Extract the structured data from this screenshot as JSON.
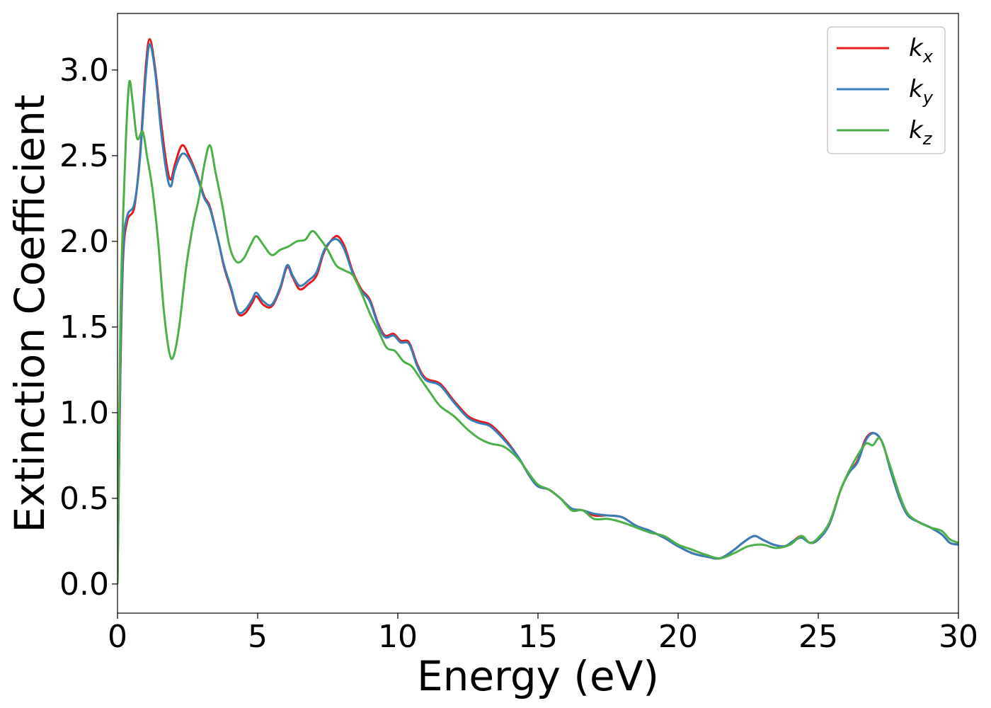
{
  "chart_data": {
    "type": "line",
    "xlabel": "Energy (eV)",
    "ylabel": "Extinction Coefficient",
    "xlim": [
      0,
      30
    ],
    "ylim": [
      -0.17,
      3.33
    ],
    "x_ticks": [
      0,
      5,
      10,
      15,
      20,
      25,
      30
    ],
    "y_ticks": [
      0.0,
      0.5,
      1.0,
      1.5,
      2.0,
      2.5,
      3.0
    ],
    "grid": false,
    "legend_position": "top-right",
    "series": [
      {
        "name": "k_x",
        "label_main": "k",
        "label_sub": "x",
        "color": "#e41a1c",
        "points": [
          [
            0,
            0
          ],
          [
            0.1,
            1.2
          ],
          [
            0.2,
            1.9
          ],
          [
            0.35,
            2.12
          ],
          [
            0.6,
            2.2
          ],
          [
            0.8,
            2.5
          ],
          [
            1.0,
            3.0
          ],
          [
            1.15,
            3.18
          ],
          [
            1.35,
            3.0
          ],
          [
            1.55,
            2.7
          ],
          [
            1.75,
            2.45
          ],
          [
            1.9,
            2.36
          ],
          [
            2.05,
            2.45
          ],
          [
            2.3,
            2.56
          ],
          [
            2.55,
            2.5
          ],
          [
            2.85,
            2.38
          ],
          [
            3.1,
            2.26
          ],
          [
            3.3,
            2.2
          ],
          [
            3.6,
            2.0
          ],
          [
            3.8,
            1.85
          ],
          [
            4.05,
            1.72
          ],
          [
            4.3,
            1.58
          ],
          [
            4.55,
            1.58
          ],
          [
            4.8,
            1.64
          ],
          [
            4.95,
            1.68
          ],
          [
            5.2,
            1.63
          ],
          [
            5.5,
            1.62
          ],
          [
            5.8,
            1.72
          ],
          [
            6.05,
            1.85
          ],
          [
            6.25,
            1.79
          ],
          [
            6.5,
            1.72
          ],
          [
            6.8,
            1.75
          ],
          [
            7.1,
            1.8
          ],
          [
            7.35,
            1.93
          ],
          [
            7.6,
            2.0
          ],
          [
            7.85,
            2.03
          ],
          [
            8.1,
            1.97
          ],
          [
            8.4,
            1.82
          ],
          [
            8.7,
            1.72
          ],
          [
            9.0,
            1.66
          ],
          [
            9.3,
            1.52
          ],
          [
            9.55,
            1.45
          ],
          [
            9.85,
            1.46
          ],
          [
            10.1,
            1.42
          ],
          [
            10.4,
            1.41
          ],
          [
            10.7,
            1.28
          ],
          [
            11.0,
            1.2
          ],
          [
            11.5,
            1.17
          ],
          [
            12.0,
            1.07
          ],
          [
            12.5,
            0.98
          ],
          [
            12.9,
            0.95
          ],
          [
            13.3,
            0.93
          ],
          [
            13.8,
            0.85
          ],
          [
            14.3,
            0.74
          ],
          [
            14.7,
            0.63
          ],
          [
            15.0,
            0.57
          ],
          [
            15.4,
            0.55
          ],
          [
            15.8,
            0.5
          ],
          [
            16.2,
            0.44
          ],
          [
            16.6,
            0.43
          ],
          [
            17.0,
            0.4
          ],
          [
            17.5,
            0.4
          ],
          [
            18.0,
            0.39
          ],
          [
            18.5,
            0.34
          ],
          [
            19.0,
            0.31
          ],
          [
            19.5,
            0.27
          ],
          [
            20.0,
            0.22
          ],
          [
            20.5,
            0.18
          ],
          [
            21.0,
            0.16
          ],
          [
            21.5,
            0.15
          ],
          [
            22.0,
            0.2
          ],
          [
            22.3,
            0.24
          ],
          [
            22.7,
            0.28
          ],
          [
            23.0,
            0.26
          ],
          [
            23.4,
            0.23
          ],
          [
            23.8,
            0.22
          ],
          [
            24.1,
            0.25
          ],
          [
            24.4,
            0.28
          ],
          [
            24.7,
            0.24
          ],
          [
            25.0,
            0.26
          ],
          [
            25.4,
            0.35
          ],
          [
            25.8,
            0.55
          ],
          [
            26.1,
            0.65
          ],
          [
            26.4,
            0.72
          ],
          [
            26.7,
            0.85
          ],
          [
            27.0,
            0.88
          ],
          [
            27.3,
            0.82
          ],
          [
            27.6,
            0.65
          ],
          [
            27.9,
            0.5
          ],
          [
            28.2,
            0.4
          ],
          [
            28.6,
            0.36
          ],
          [
            29.0,
            0.33
          ],
          [
            29.4,
            0.29
          ],
          [
            29.7,
            0.24
          ],
          [
            30.0,
            0.23
          ]
        ]
      },
      {
        "name": "k_y",
        "label_main": "k",
        "label_sub": "y",
        "color": "#377eb8",
        "points": [
          [
            0,
            0
          ],
          [
            0.1,
            1.25
          ],
          [
            0.2,
            1.95
          ],
          [
            0.35,
            2.15
          ],
          [
            0.6,
            2.22
          ],
          [
            0.8,
            2.48
          ],
          [
            1.0,
            2.95
          ],
          [
            1.15,
            3.15
          ],
          [
            1.35,
            2.98
          ],
          [
            1.55,
            2.65
          ],
          [
            1.75,
            2.4
          ],
          [
            1.9,
            2.32
          ],
          [
            2.05,
            2.42
          ],
          [
            2.3,
            2.51
          ],
          [
            2.55,
            2.48
          ],
          [
            2.85,
            2.37
          ],
          [
            3.1,
            2.25
          ],
          [
            3.3,
            2.19
          ],
          [
            3.6,
            2.0
          ],
          [
            3.8,
            1.86
          ],
          [
            4.05,
            1.73
          ],
          [
            4.3,
            1.59
          ],
          [
            4.55,
            1.6
          ],
          [
            4.8,
            1.66
          ],
          [
            4.95,
            1.7
          ],
          [
            5.2,
            1.65
          ],
          [
            5.5,
            1.63
          ],
          [
            5.8,
            1.73
          ],
          [
            6.05,
            1.86
          ],
          [
            6.25,
            1.8
          ],
          [
            6.5,
            1.74
          ],
          [
            6.8,
            1.77
          ],
          [
            7.1,
            1.82
          ],
          [
            7.35,
            1.94
          ],
          [
            7.6,
            2.0
          ],
          [
            7.85,
            2.01
          ],
          [
            8.1,
            1.95
          ],
          [
            8.4,
            1.81
          ],
          [
            8.7,
            1.71
          ],
          [
            9.0,
            1.65
          ],
          [
            9.3,
            1.51
          ],
          [
            9.55,
            1.44
          ],
          [
            9.85,
            1.45
          ],
          [
            10.1,
            1.41
          ],
          [
            10.4,
            1.4
          ],
          [
            10.7,
            1.27
          ],
          [
            11.0,
            1.19
          ],
          [
            11.5,
            1.16
          ],
          [
            12.0,
            1.06
          ],
          [
            12.5,
            0.97
          ],
          [
            12.9,
            0.94
          ],
          [
            13.3,
            0.92
          ],
          [
            13.8,
            0.84
          ],
          [
            14.3,
            0.74
          ],
          [
            14.7,
            0.63
          ],
          [
            15.0,
            0.57
          ],
          [
            15.4,
            0.55
          ],
          [
            15.8,
            0.5
          ],
          [
            16.2,
            0.44
          ],
          [
            16.6,
            0.43
          ],
          [
            17.0,
            0.41
          ],
          [
            17.5,
            0.4
          ],
          [
            18.0,
            0.39
          ],
          [
            18.5,
            0.34
          ],
          [
            19.0,
            0.31
          ],
          [
            19.5,
            0.27
          ],
          [
            20.0,
            0.22
          ],
          [
            20.5,
            0.18
          ],
          [
            21.0,
            0.16
          ],
          [
            21.5,
            0.15
          ],
          [
            22.0,
            0.2
          ],
          [
            22.3,
            0.24
          ],
          [
            22.7,
            0.28
          ],
          [
            23.0,
            0.26
          ],
          [
            23.4,
            0.23
          ],
          [
            23.8,
            0.22
          ],
          [
            24.1,
            0.25
          ],
          [
            24.4,
            0.27
          ],
          [
            24.7,
            0.24
          ],
          [
            25.0,
            0.26
          ],
          [
            25.4,
            0.35
          ],
          [
            25.8,
            0.55
          ],
          [
            26.1,
            0.65
          ],
          [
            26.4,
            0.71
          ],
          [
            26.7,
            0.84
          ],
          [
            27.0,
            0.88
          ],
          [
            27.3,
            0.82
          ],
          [
            27.6,
            0.65
          ],
          [
            27.9,
            0.5
          ],
          [
            28.2,
            0.4
          ],
          [
            28.6,
            0.36
          ],
          [
            29.0,
            0.33
          ],
          [
            29.4,
            0.29
          ],
          [
            29.7,
            0.24
          ],
          [
            30.0,
            0.23
          ]
        ]
      },
      {
        "name": "k_z",
        "label_main": "k",
        "label_sub": "z",
        "color": "#4daf4a",
        "points": [
          [
            0,
            0
          ],
          [
            0.1,
            1.5
          ],
          [
            0.2,
            2.15
          ],
          [
            0.3,
            2.6
          ],
          [
            0.42,
            2.93
          ],
          [
            0.55,
            2.8
          ],
          [
            0.7,
            2.6
          ],
          [
            0.9,
            2.64
          ],
          [
            1.05,
            2.5
          ],
          [
            1.25,
            2.3
          ],
          [
            1.45,
            2.0
          ],
          [
            1.65,
            1.6
          ],
          [
            1.85,
            1.35
          ],
          [
            2.0,
            1.33
          ],
          [
            2.2,
            1.5
          ],
          [
            2.45,
            1.85
          ],
          [
            2.7,
            2.1
          ],
          [
            2.9,
            2.25
          ],
          [
            3.1,
            2.45
          ],
          [
            3.3,
            2.56
          ],
          [
            3.5,
            2.4
          ],
          [
            3.75,
            2.2
          ],
          [
            4.0,
            1.97
          ],
          [
            4.25,
            1.88
          ],
          [
            4.5,
            1.9
          ],
          [
            4.75,
            1.98
          ],
          [
            4.95,
            2.03
          ],
          [
            5.2,
            1.98
          ],
          [
            5.5,
            1.92
          ],
          [
            5.8,
            1.95
          ],
          [
            6.1,
            1.97
          ],
          [
            6.4,
            2.0
          ],
          [
            6.7,
            2.01
          ],
          [
            6.95,
            2.06
          ],
          [
            7.2,
            2.02
          ],
          [
            7.5,
            1.95
          ],
          [
            7.8,
            1.86
          ],
          [
            8.1,
            1.83
          ],
          [
            8.4,
            1.8
          ],
          [
            8.7,
            1.7
          ],
          [
            9.0,
            1.58
          ],
          [
            9.3,
            1.48
          ],
          [
            9.6,
            1.38
          ],
          [
            9.9,
            1.36
          ],
          [
            10.2,
            1.3
          ],
          [
            10.5,
            1.27
          ],
          [
            10.8,
            1.2
          ],
          [
            11.1,
            1.13
          ],
          [
            11.5,
            1.04
          ],
          [
            12.0,
            0.98
          ],
          [
            12.5,
            0.9
          ],
          [
            12.9,
            0.85
          ],
          [
            13.3,
            0.82
          ],
          [
            13.8,
            0.8
          ],
          [
            14.3,
            0.73
          ],
          [
            14.7,
            0.64
          ],
          [
            15.0,
            0.58
          ],
          [
            15.4,
            0.55
          ],
          [
            15.8,
            0.5
          ],
          [
            16.2,
            0.43
          ],
          [
            16.6,
            0.43
          ],
          [
            17.0,
            0.38
          ],
          [
            17.5,
            0.38
          ],
          [
            18.0,
            0.36
          ],
          [
            18.5,
            0.33
          ],
          [
            19.0,
            0.3
          ],
          [
            19.5,
            0.28
          ],
          [
            20.0,
            0.23
          ],
          [
            20.5,
            0.2
          ],
          [
            21.0,
            0.17
          ],
          [
            21.5,
            0.15
          ],
          [
            22.0,
            0.18
          ],
          [
            22.5,
            0.22
          ],
          [
            23.0,
            0.23
          ],
          [
            23.5,
            0.21
          ],
          [
            24.0,
            0.23
          ],
          [
            24.4,
            0.28
          ],
          [
            24.7,
            0.24
          ],
          [
            25.0,
            0.27
          ],
          [
            25.4,
            0.36
          ],
          [
            25.8,
            0.55
          ],
          [
            26.1,
            0.66
          ],
          [
            26.4,
            0.75
          ],
          [
            26.7,
            0.82
          ],
          [
            26.95,
            0.81
          ],
          [
            27.2,
            0.85
          ],
          [
            27.5,
            0.72
          ],
          [
            27.9,
            0.52
          ],
          [
            28.2,
            0.41
          ],
          [
            28.6,
            0.36
          ],
          [
            29.0,
            0.33
          ],
          [
            29.4,
            0.31
          ],
          [
            29.7,
            0.26
          ],
          [
            30.0,
            0.24
          ]
        ]
      }
    ]
  }
}
